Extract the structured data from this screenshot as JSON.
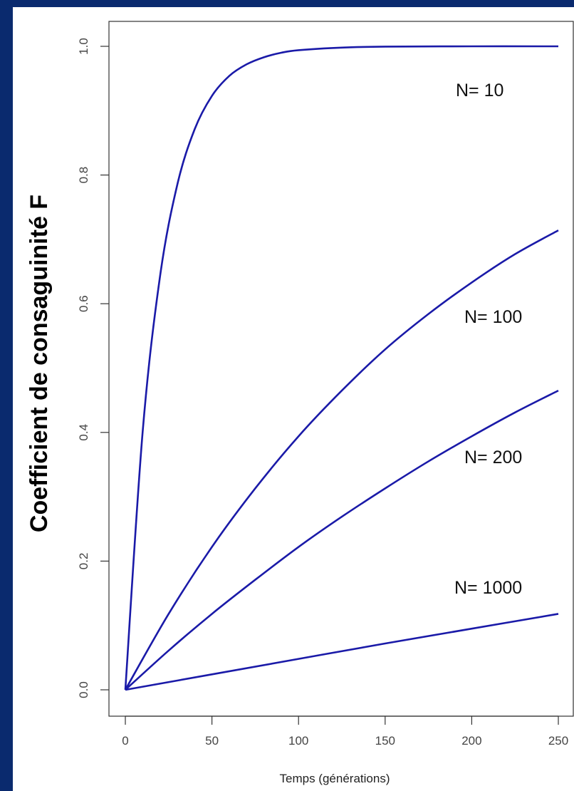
{
  "chart_data": {
    "type": "line",
    "title": "",
    "xlabel": "Temps (générations)",
    "ylabel": "Coefficient de consaguinité F",
    "xlim": [
      0,
      250
    ],
    "ylim": [
      0,
      1.0
    ],
    "x_ticks": [
      "0",
      "50",
      "100",
      "150",
      "200",
      "250"
    ],
    "y_ticks": [
      "0.0",
      "0.2",
      "0.4",
      "0.6",
      "0.8",
      "1.0"
    ],
    "grid": false,
    "line_color": "#1a1aa8",
    "series": [
      {
        "name": "N= 10",
        "x": [
          0,
          10,
          20,
          30,
          40,
          50,
          60,
          70,
          80,
          90,
          100,
          125,
          150,
          200,
          250
        ],
        "y": [
          0,
          0.401,
          0.642,
          0.785,
          0.871,
          0.923,
          0.954,
          0.972,
          0.983,
          0.99,
          0.994,
          0.998,
          0.9995,
          1.0,
          1.0
        ]
      },
      {
        "name": "N= 100",
        "x": [
          0,
          25,
          50,
          75,
          100,
          125,
          150,
          175,
          200,
          225,
          250
        ],
        "y": [
          0,
          0.118,
          0.222,
          0.313,
          0.394,
          0.465,
          0.529,
          0.584,
          0.633,
          0.677,
          0.714
        ]
      },
      {
        "name": "N= 200",
        "x": [
          0,
          25,
          50,
          75,
          100,
          125,
          150,
          175,
          200,
          225,
          250
        ],
        "y": [
          0,
          0.061,
          0.118,
          0.171,
          0.222,
          0.269,
          0.313,
          0.355,
          0.394,
          0.431,
          0.465
        ]
      },
      {
        "name": "N= 1000",
        "x": [
          0,
          50,
          100,
          150,
          200,
          250
        ],
        "y": [
          0,
          0.024,
          0.048,
          0.072,
          0.095,
          0.118
        ]
      }
    ]
  }
}
